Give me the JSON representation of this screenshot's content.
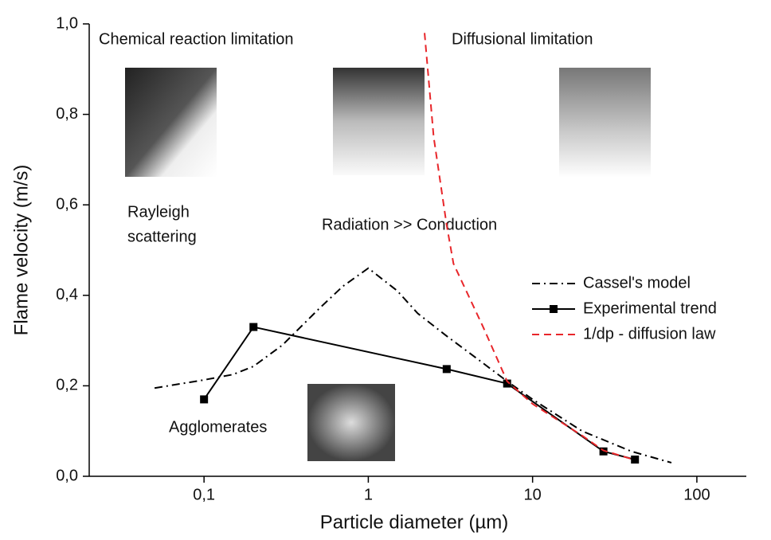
{
  "chart_data": {
    "type": "line",
    "x_label": "Particle diameter (µm)",
    "y_label": "Flame velocity (m/s)",
    "xscale": "log",
    "xlim": [
      0.02,
      200
    ],
    "ylim": [
      0,
      1
    ],
    "xticks": [
      {
        "value": 0.1,
        "label": "0,1"
      },
      1,
      10,
      100
    ],
    "yticks": [
      {
        "value": 0,
        "label": "0,0"
      },
      {
        "value": 0.2,
        "label": "0,2"
      },
      {
        "value": 0.4,
        "label": "0,4"
      },
      {
        "value": 0.6,
        "label": "0,6"
      },
      {
        "value": 0.8,
        "label": "0,8"
      },
      {
        "value": 1,
        "label": "1,0"
      }
    ],
    "legend": "right",
    "series": [
      {
        "name": "Cassel's model",
        "color": "#000000",
        "dash": "dashdot",
        "marker": "none",
        "x": [
          0.05,
          0.1,
          0.15,
          0.2,
          0.3,
          0.5,
          0.7,
          1,
          1.5,
          2,
          3,
          5,
          7,
          10,
          20,
          40,
          70
        ],
        "values": [
          0.195,
          0.213,
          0.225,
          0.243,
          0.29,
          0.37,
          0.42,
          0.46,
          0.41,
          0.36,
          0.31,
          0.25,
          0.21,
          0.17,
          0.1,
          0.055,
          0.03
        ]
      },
      {
        "name": "Experimental trend",
        "color": "#000000",
        "dash": "solid",
        "marker": "square",
        "x": [
          0.1,
          0.2,
          3,
          7,
          27,
          42
        ],
        "values": [
          0.17,
          0.33,
          0.237,
          0.205,
          0.055,
          0.037
        ]
      },
      {
        "name": "1/dp - diffusion law",
        "color": "#e8262a",
        "dash": "dashed",
        "marker": "none",
        "x": [
          2.2,
          2.5,
          3,
          3.3,
          5,
          7,
          10,
          20,
          27,
          42
        ],
        "values": [
          0.98,
          0.75,
          0.555,
          0.47,
          0.33,
          0.21,
          0.16,
          0.09,
          0.057,
          0.036
        ]
      }
    ],
    "annotations": [
      "Chemical reaction limitation",
      "Diffusional limitation",
      "Rayleigh",
      "scattering",
      "Radiation >> Conduction",
      "Agglomerates"
    ]
  }
}
